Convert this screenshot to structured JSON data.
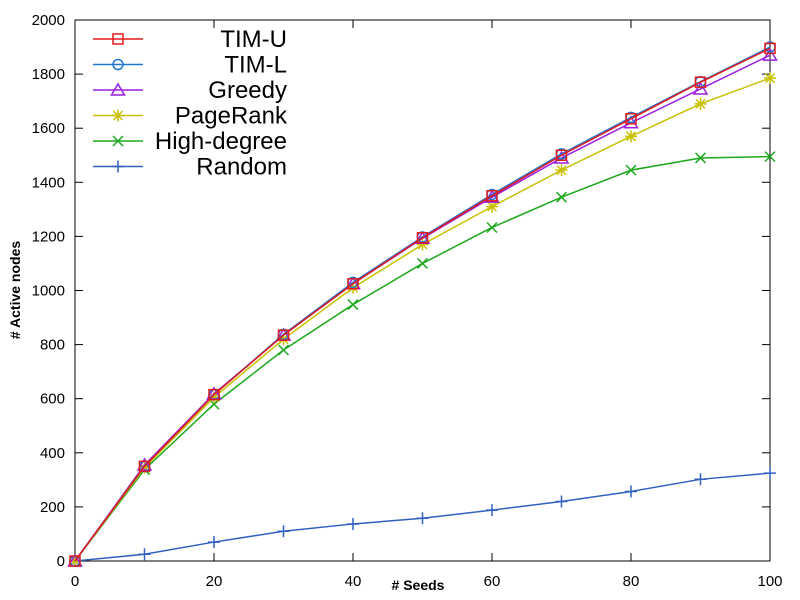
{
  "chart_data": {
    "type": "line",
    "title": "",
    "xlabel": "# Seeds",
    "ylabel": "# Active nodes",
    "xlim": [
      0,
      100
    ],
    "ylim": [
      0,
      2000
    ],
    "xticks": [
      0,
      20,
      40,
      60,
      80,
      100
    ],
    "yticks": [
      0,
      200,
      400,
      600,
      800,
      1000,
      1200,
      1400,
      1600,
      1800,
      2000
    ],
    "grid": false,
    "legend_position": "top-left",
    "x": [
      0,
      10,
      20,
      30,
      40,
      50,
      60,
      70,
      80,
      90,
      100
    ],
    "series": [
      {
        "name": "TIM-U",
        "color": "#e31a1c",
        "marker": "square",
        "values": [
          0,
          350,
          615,
          835,
          1025,
          1195,
          1350,
          1500,
          1635,
          1770,
          1895
        ]
      },
      {
        "name": "TIM-L",
        "color": "#1f78d4",
        "marker": "circle",
        "values": [
          0,
          350,
          615,
          838,
          1030,
          1198,
          1355,
          1505,
          1640,
          1772,
          1900
        ]
      },
      {
        "name": "Greedy",
        "color": "#9b1fe0",
        "marker": "triangle",
        "values": [
          0,
          355,
          618,
          835,
          1025,
          1193,
          1345,
          1490,
          1620,
          1745,
          1870
        ]
      },
      {
        "name": "PageRank",
        "color": "#c8c000",
        "marker": "star",
        "values": [
          0,
          345,
          605,
          820,
          1010,
          1170,
          1310,
          1445,
          1570,
          1690,
          1785
        ]
      },
      {
        "name": "High-degree",
        "color": "#1da81d",
        "marker": "x",
        "values": [
          0,
          338,
          580,
          780,
          948,
          1100,
          1233,
          1345,
          1445,
          1490,
          1495
        ]
      },
      {
        "name": "Random",
        "color": "#3060c0",
        "marker": "plus",
        "values": [
          0,
          25,
          70,
          110,
          137,
          158,
          188,
          220,
          257,
          302,
          325
        ]
      }
    ]
  }
}
